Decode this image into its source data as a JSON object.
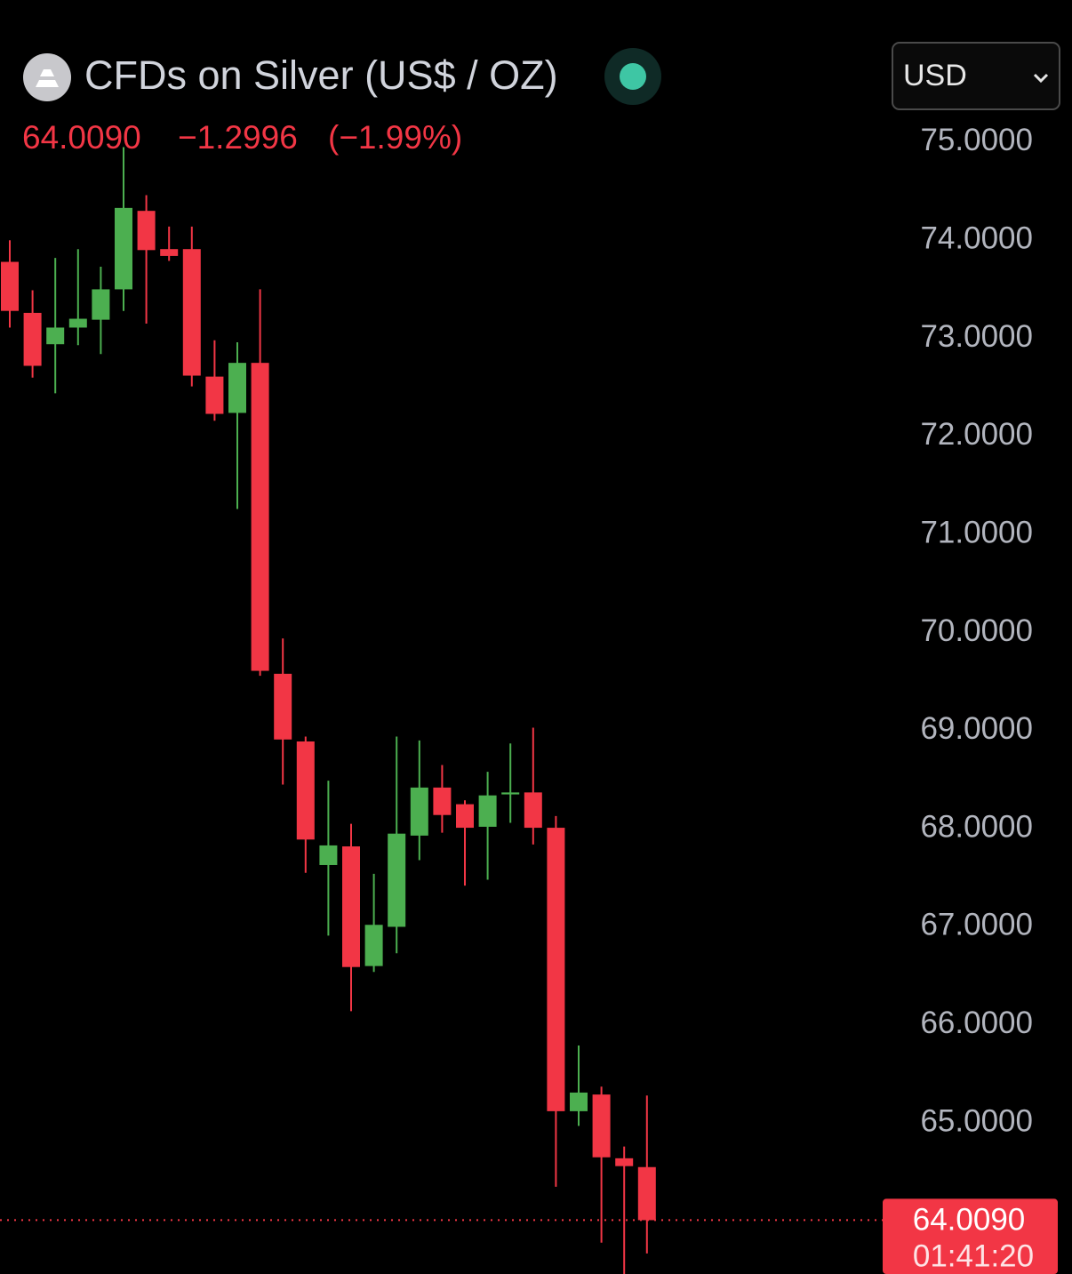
{
  "chart_data": {
    "type": "candlestick",
    "title": "CFDs on Silver (US$ / OZ)",
    "currency": "USD",
    "last_price": {
      "value": 64.009,
      "label": "64.0090"
    },
    "change": "−1.2996",
    "change_percent": "(−1.99%)",
    "countdown": "01:41:20",
    "open": [
      73.78,
      73.26,
      72.94,
      73.11,
      73.19,
      73.5,
      74.3,
      73.91,
      73.91,
      72.61,
      72.24,
      72.75,
      69.58,
      68.89,
      67.63,
      67.82,
      66.6,
      67.0,
      67.93,
      68.42,
      68.25,
      68.02,
      68.35,
      68.37,
      68.01,
      65.12,
      65.29,
      64.64,
      64.55
    ],
    "high": [
      74.0,
      73.49,
      73.82,
      73.91,
      73.73,
      74.95,
      74.46,
      74.14,
      74.14,
      72.98,
      72.96,
      73.5,
      69.94,
      68.94,
      68.49,
      68.05,
      67.54,
      68.94,
      68.9,
      68.65,
      68.29,
      68.58,
      68.87,
      69.03,
      68.13,
      65.79,
      65.37,
      64.76,
      65.28
    ],
    "low": [
      73.11,
      72.6,
      72.44,
      72.93,
      72.84,
      73.28,
      73.15,
      73.79,
      72.51,
      72.16,
      71.26,
      69.56,
      68.45,
      67.55,
      66.91,
      66.14,
      66.54,
      66.73,
      67.68,
      67.96,
      67.42,
      67.48,
      68.06,
      67.84,
      64.35,
      64.97,
      63.78,
      63.46,
      63.67
    ],
    "close": [
      73.28,
      72.72,
      73.11,
      73.2,
      73.5,
      74.33,
      73.9,
      73.84,
      72.62,
      72.23,
      72.75,
      69.61,
      68.91,
      67.89,
      67.83,
      66.59,
      67.02,
      67.95,
      68.42,
      68.14,
      68.01,
      68.34,
      68.37,
      68.01,
      65.12,
      65.31,
      64.65,
      64.56,
      64.009
    ],
    "up_color": "#4caf50",
    "down_color": "#f23645",
    "ylim": [
      63.46,
      76.45
    ],
    "yticks": [
      {
        "value": 65,
        "label": "65.0000"
      },
      {
        "value": 66,
        "label": "66.0000"
      },
      {
        "value": 67,
        "label": "67.0000"
      },
      {
        "value": 68,
        "label": "68.0000"
      },
      {
        "value": 69,
        "label": "69.0000"
      },
      {
        "value": 70,
        "label": "70.0000"
      },
      {
        "value": 71,
        "label": "71.0000"
      },
      {
        "value": 72,
        "label": "72.0000"
      },
      {
        "value": 73,
        "label": "73.0000"
      },
      {
        "value": 74,
        "label": "74.0000"
      },
      {
        "value": 75,
        "label": "75.0000"
      }
    ],
    "grid": false
  }
}
